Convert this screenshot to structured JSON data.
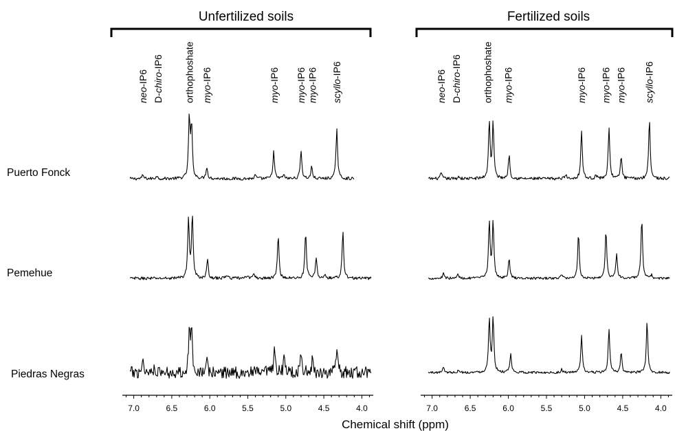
{
  "chart_data": {
    "type": "line",
    "xlabel": "Chemical shift (ppm)",
    "x_reversed": true,
    "xlim": [
      7.15,
      3.85
    ],
    "xticks": [
      "7.0",
      "6.5",
      "6.0",
      "5.5",
      "5.0",
      "4.5",
      "4.0"
    ],
    "samples": [
      "Puerto Fonck",
      "Pemehue",
      "Piedras Negras"
    ],
    "panels": [
      {
        "title": "Unfertilized soils",
        "peak_labels": [
          {
            "pre": "neo",
            "post": "-IP6",
            "x": 6.88
          },
          {
            "pre": "D-",
            "mid": "chiro",
            "post": "-IP6",
            "x": 6.68
          },
          {
            "pre": "",
            "post": "orthophoshate",
            "x": 6.27
          },
          {
            "pre": "myo",
            "post": "-IP6",
            "x": 6.04
          },
          {
            "pre": "myo",
            "post": "-IP6",
            "x": 5.15
          },
          {
            "pre": "myo",
            "post": "-IP6",
            "x": 4.8
          },
          {
            "pre": "myo",
            "post": "-IP6",
            "x": 4.65
          },
          {
            "pre": "scyllo",
            "post": "-IP6",
            "x": 4.33
          }
        ],
        "spectra": [
          {
            "name": "Puerto Fonck",
            "noise": 0.025,
            "xlim": [
              7.05,
              4.1
            ],
            "peaks": [
              [
                6.27,
                1.0
              ],
              [
                6.24,
                0.85
              ],
              [
                6.04,
                0.2
              ],
              [
                6.88,
                0.06
              ],
              [
                6.7,
                0.05
              ],
              [
                5.4,
                0.06
              ],
              [
                5.16,
                0.45
              ],
              [
                5.03,
                0.07
              ],
              [
                4.8,
                0.48
              ],
              [
                4.66,
                0.2
              ],
              [
                4.33,
                0.85
              ]
            ]
          },
          {
            "name": "Pemehue",
            "noise": 0.025,
            "xlim": [
              7.05,
              3.87
            ],
            "peaks": [
              [
                6.28,
                1.0
              ],
              [
                6.23,
                1.04
              ],
              [
                6.03,
                0.3
              ],
              [
                5.78,
                0.07
              ],
              [
                5.5,
                0.06
              ],
              [
                5.42,
                0.08
              ],
              [
                5.1,
                0.72
              ],
              [
                4.74,
                0.78
              ],
              [
                4.6,
                0.35
              ],
              [
                4.25,
                0.78
              ],
              [
                4.48,
                0.05
              ]
            ]
          },
          {
            "name": "Piedras Negras",
            "noise": 0.1,
            "xlim": [
              7.05,
              3.87
            ],
            "peaks": [
              [
                6.88,
                0.25
              ],
              [
                6.73,
                0.12
              ],
              [
                6.27,
                0.62
              ],
              [
                6.24,
                0.75
              ],
              [
                6.04,
                0.18
              ],
              [
                5.15,
                0.33
              ],
              [
                5.02,
                0.25
              ],
              [
                4.8,
                0.36
              ],
              [
                4.65,
                0.2
              ],
              [
                4.33,
                0.35
              ]
            ]
          }
        ]
      },
      {
        "title": "Fertilized soils",
        "peak_labels": [
          {
            "pre": "neo",
            "post": "-IP6",
            "x": 6.88
          },
          {
            "pre": "D-",
            "mid": "chiro",
            "post": "-IP6",
            "x": 6.68
          },
          {
            "pre": "",
            "post": "orthophoshate",
            "x": 6.27
          },
          {
            "pre": "myo",
            "post": "-IP6",
            "x": 6.0
          },
          {
            "pre": "myo",
            "post": "-IP6",
            "x": 5.04
          },
          {
            "pre": "myo",
            "post": "-IP6",
            "x": 4.72
          },
          {
            "pre": "myo",
            "post": "-IP6",
            "x": 4.52
          },
          {
            "pre": "scyllo",
            "post": "-IP6",
            "x": 4.15
          }
        ],
        "spectra": [
          {
            "name": "Puerto Fonck",
            "noise": 0.025,
            "xlim": [
              7.05,
              3.88
            ],
            "peaks": [
              [
                6.88,
                0.1
              ],
              [
                6.65,
                0.04
              ],
              [
                6.25,
                0.95
              ],
              [
                6.2,
                0.92
              ],
              [
                5.99,
                0.4
              ],
              [
                5.25,
                0.08
              ],
              [
                5.04,
                0.8
              ],
              [
                4.68,
                0.86
              ],
              [
                4.52,
                0.37
              ],
              [
                4.15,
                1.0
              ],
              [
                4.85,
                0.06
              ]
            ]
          },
          {
            "name": "Pemehue",
            "noise": 0.02,
            "xlim": [
              7.05,
              3.88
            ],
            "peaks": [
              [
                6.85,
                0.1
              ],
              [
                6.66,
                0.07
              ],
              [
                6.25,
                0.95
              ],
              [
                6.2,
                0.92
              ],
              [
                5.99,
                0.33
              ],
              [
                5.3,
                0.07
              ],
              [
                5.08,
                0.75
              ],
              [
                4.72,
                0.8
              ],
              [
                4.58,
                0.42
              ],
              [
                4.25,
                1.0
              ],
              [
                4.12,
                0.05
              ]
            ]
          },
          {
            "name": "Piedras Negras",
            "noise": 0.02,
            "xlim": [
              7.05,
              3.88
            ],
            "peaks": [
              [
                6.85,
                0.1
              ],
              [
                6.65,
                0.05
              ],
              [
                6.25,
                0.9
              ],
              [
                6.2,
                0.92
              ],
              [
                5.97,
                0.3
              ],
              [
                5.3,
                0.05
              ],
              [
                5.04,
                0.6
              ],
              [
                4.68,
                0.72
              ],
              [
                4.52,
                0.33
              ],
              [
                4.18,
                0.84
              ]
            ]
          }
        ]
      }
    ]
  }
}
